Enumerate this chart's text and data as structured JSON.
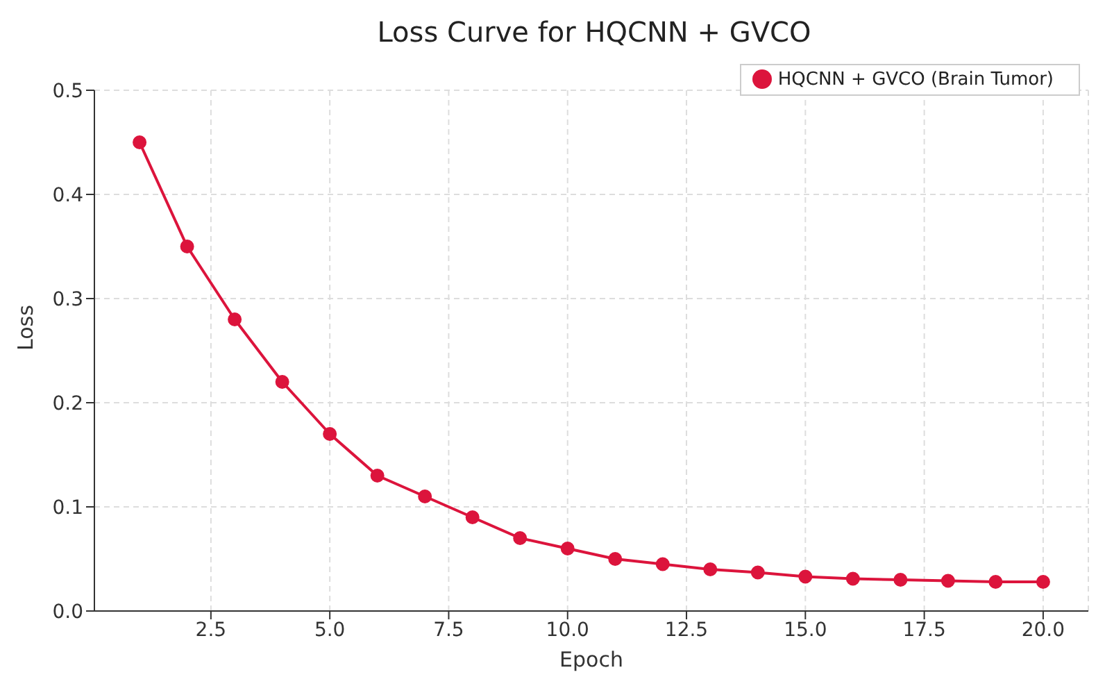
{
  "chart_data": {
    "type": "line",
    "title": "Loss Curve for HQCNN + GVCO",
    "xlabel": "Epoch",
    "ylabel": "Loss",
    "x": [
      1,
      2,
      3,
      4,
      5,
      6,
      7,
      8,
      9,
      10,
      11,
      12,
      13,
      14,
      15,
      16,
      17,
      18,
      19,
      20
    ],
    "series": [
      {
        "name": "HQCNN + GVCO (Brain Tumor)",
        "color": "#dc143c",
        "values": [
          0.45,
          0.35,
          0.28,
          0.22,
          0.17,
          0.13,
          0.11,
          0.09,
          0.07,
          0.06,
          0.05,
          0.045,
          0.04,
          0.037,
          0.033,
          0.031,
          0.03,
          0.029,
          0.028,
          0.028
        ]
      }
    ],
    "xlim": [
      0.05,
      20.95
    ],
    "xticks": [
      {
        "value": 2.5,
        "label": "2.5"
      },
      {
        "value": 5,
        "label": "5.0"
      },
      {
        "value": 7.5,
        "label": "7.5"
      },
      {
        "value": 10,
        "label": "10.0"
      },
      {
        "value": 12.5,
        "label": "12.5"
      },
      {
        "value": 15,
        "label": "15.0"
      },
      {
        "value": 17.5,
        "label": "17.5"
      },
      {
        "value": 20,
        "label": "20.0"
      }
    ],
    "ylim": [
      0,
      0.5
    ],
    "yticks": [
      {
        "value": 0,
        "label": "0.0"
      },
      {
        "value": 0.1,
        "label": "0.1"
      },
      {
        "value": 0.2,
        "label": "0.2"
      },
      {
        "value": 0.3,
        "label": "0.3"
      },
      {
        "value": 0.4,
        "label": "0.4"
      },
      {
        "value": 0.5,
        "label": "0.5"
      }
    ],
    "grid": true,
    "legend": "top right",
    "marker": "circle",
    "line_style": "solid"
  }
}
